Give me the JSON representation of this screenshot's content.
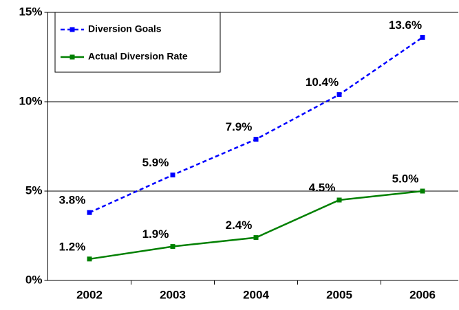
{
  "chart_data": {
    "type": "line",
    "categories": [
      "2002",
      "2003",
      "2004",
      "2005",
      "2006"
    ],
    "series": [
      {
        "name": "Diversion Goals",
        "color": "#0000ff",
        "dashed": true,
        "values": [
          3.8,
          5.9,
          7.9,
          10.4,
          13.6
        ],
        "value_labels": [
          "3.8%",
          "5.9%",
          "7.9%",
          "10.4%",
          "13.6%"
        ]
      },
      {
        "name": "Actual Diversion Rate",
        "color": "#008000",
        "dashed": false,
        "values": [
          1.2,
          1.9,
          2.4,
          4.5,
          5.0
        ],
        "value_labels": [
          "1.2%",
          "1.9%",
          "2.4%",
          "4.5%",
          "5.0%"
        ]
      }
    ],
    "ylim": [
      0,
      15
    ],
    "yticks": [
      {
        "value": 0,
        "label": "0%"
      },
      {
        "value": 5,
        "label": "5%"
      },
      {
        "value": 10,
        "label": "10%"
      },
      {
        "value": 15,
        "label": "15%"
      }
    ],
    "grid": true,
    "legend": "upper left"
  }
}
